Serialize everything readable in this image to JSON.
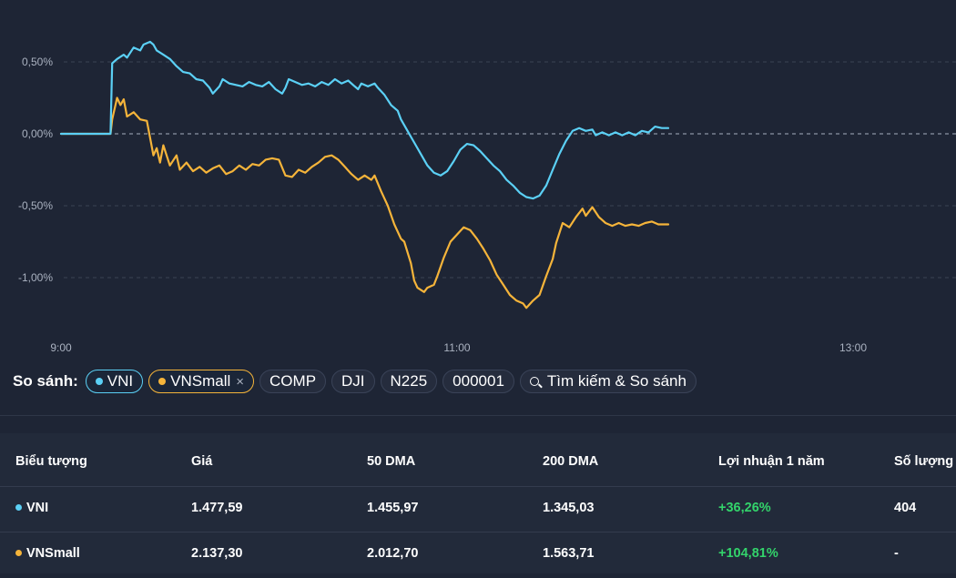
{
  "colors": {
    "vni": "#5bd0f5",
    "vnsmall": "#f5b43a",
    "positive": "#33d46b"
  },
  "chart_data": {
    "type": "line",
    "y_ticks": [
      "0,50%",
      "0,00%",
      "-0,50%",
      "-1,00%"
    ],
    "y_tick_values": [
      0.5,
      0,
      -0.5,
      -1.0
    ],
    "x_ticks": [
      "9:00",
      "11:00",
      "13:00"
    ],
    "x_tick_values": [
      0,
      120,
      240
    ],
    "xlim": [
      0,
      270
    ],
    "ylim": [
      -1.45,
      0.85
    ],
    "grid": "dashed-horizontal",
    "series": [
      {
        "name": "VNI",
        "color": "#5bd0f5",
        "points": [
          [
            0,
            0
          ],
          [
            15,
            0
          ],
          [
            15.5,
            0.49
          ],
          [
            17,
            0.52
          ],
          [
            19,
            0.55
          ],
          [
            20,
            0.53
          ],
          [
            22,
            0.6
          ],
          [
            24,
            0.58
          ],
          [
            25,
            0.62
          ],
          [
            27,
            0.64
          ],
          [
            28,
            0.62
          ],
          [
            29,
            0.58
          ],
          [
            31,
            0.55
          ],
          [
            33,
            0.52
          ],
          [
            35,
            0.47
          ],
          [
            37,
            0.43
          ],
          [
            39,
            0.42
          ],
          [
            41,
            0.38
          ],
          [
            43,
            0.37
          ],
          [
            45,
            0.32
          ],
          [
            46,
            0.28
          ],
          [
            48,
            0.33
          ],
          [
            49,
            0.38
          ],
          [
            51,
            0.35
          ],
          [
            53,
            0.34
          ],
          [
            55,
            0.33
          ],
          [
            57,
            0.36
          ],
          [
            59,
            0.34
          ],
          [
            61,
            0.33
          ],
          [
            63,
            0.36
          ],
          [
            65,
            0.31
          ],
          [
            67,
            0.28
          ],
          [
            68,
            0.32
          ],
          [
            69,
            0.38
          ],
          [
            71,
            0.36
          ],
          [
            73,
            0.34
          ],
          [
            75,
            0.35
          ],
          [
            77,
            0.33
          ],
          [
            79,
            0.36
          ],
          [
            81,
            0.34
          ],
          [
            83,
            0.38
          ],
          [
            85,
            0.35
          ],
          [
            87,
            0.37
          ],
          [
            89,
            0.33
          ],
          [
            90,
            0.31
          ],
          [
            91,
            0.35
          ],
          [
            93,
            0.33
          ],
          [
            95,
            0.35
          ],
          [
            96,
            0.32
          ],
          [
            98,
            0.27
          ],
          [
            100,
            0.2
          ],
          [
            102,
            0.16
          ],
          [
            103,
            0.1
          ],
          [
            105,
            0.02
          ],
          [
            107,
            -0.06
          ],
          [
            109,
            -0.14
          ],
          [
            111,
            -0.22
          ],
          [
            113,
            -0.27
          ],
          [
            115,
            -0.29
          ],
          [
            117,
            -0.26
          ],
          [
            119,
            -0.19
          ],
          [
            121,
            -0.11
          ],
          [
            123,
            -0.07
          ],
          [
            125,
            -0.08
          ],
          [
            127,
            -0.12
          ],
          [
            129,
            -0.17
          ],
          [
            131,
            -0.22
          ],
          [
            133,
            -0.26
          ],
          [
            135,
            -0.32
          ],
          [
            137,
            -0.36
          ],
          [
            139,
            -0.41
          ],
          [
            141,
            -0.44
          ],
          [
            143,
            -0.45
          ],
          [
            145,
            -0.43
          ],
          [
            147,
            -0.36
          ],
          [
            149,
            -0.25
          ],
          [
            151,
            -0.14
          ],
          [
            153,
            -0.05
          ],
          [
            155,
            0.02
          ],
          [
            157,
            0.04
          ],
          [
            159,
            0.02
          ],
          [
            161,
            0.03
          ],
          [
            162,
            -0.01
          ],
          [
            164,
            0.01
          ],
          [
            166,
            -0.01
          ],
          [
            168,
            0.01
          ],
          [
            170,
            -0.01
          ],
          [
            172,
            0.01
          ],
          [
            174,
            -0.01
          ],
          [
            176,
            0.02
          ],
          [
            178,
            0.01
          ],
          [
            180,
            0.05
          ],
          [
            182,
            0.04
          ],
          [
            184,
            0.04
          ]
        ]
      },
      {
        "name": "VNSmall",
        "color": "#f5b43a",
        "points": [
          [
            0,
            0
          ],
          [
            15,
            0
          ],
          [
            15.5,
            0.1
          ],
          [
            17,
            0.25
          ],
          [
            18,
            0.2
          ],
          [
            19,
            0.24
          ],
          [
            20,
            0.12
          ],
          [
            22,
            0.15
          ],
          [
            24,
            0.1
          ],
          [
            26,
            0.09
          ],
          [
            27,
            -0.03
          ],
          [
            28,
            -0.15
          ],
          [
            29,
            -0.1
          ],
          [
            30,
            -0.2
          ],
          [
            31,
            -0.08
          ],
          [
            33,
            -0.22
          ],
          [
            35,
            -0.15
          ],
          [
            36,
            -0.25
          ],
          [
            38,
            -0.2
          ],
          [
            40,
            -0.26
          ],
          [
            42,
            -0.23
          ],
          [
            44,
            -0.27
          ],
          [
            46,
            -0.24
          ],
          [
            48,
            -0.22
          ],
          [
            50,
            -0.28
          ],
          [
            52,
            -0.26
          ],
          [
            54,
            -0.22
          ],
          [
            56,
            -0.25
          ],
          [
            58,
            -0.21
          ],
          [
            60,
            -0.22
          ],
          [
            62,
            -0.18
          ],
          [
            64,
            -0.17
          ],
          [
            66,
            -0.18
          ],
          [
            68,
            -0.29
          ],
          [
            70,
            -0.3
          ],
          [
            72,
            -0.25
          ],
          [
            74,
            -0.27
          ],
          [
            76,
            -0.23
          ],
          [
            78,
            -0.2
          ],
          [
            80,
            -0.16
          ],
          [
            82,
            -0.15
          ],
          [
            84,
            -0.18
          ],
          [
            86,
            -0.23
          ],
          [
            88,
            -0.28
          ],
          [
            90,
            -0.32
          ],
          [
            92,
            -0.29
          ],
          [
            94,
            -0.32
          ],
          [
            95,
            -0.29
          ],
          [
            97,
            -0.4
          ],
          [
            99,
            -0.5
          ],
          [
            101,
            -0.63
          ],
          [
            103,
            -0.73
          ],
          [
            104,
            -0.75
          ],
          [
            106,
            -0.9
          ],
          [
            107,
            -1.02
          ],
          [
            108,
            -1.07
          ],
          [
            110,
            -1.1
          ],
          [
            111,
            -1.07
          ],
          [
            113,
            -1.05
          ],
          [
            114,
            -0.99
          ],
          [
            116,
            -0.86
          ],
          [
            118,
            -0.75
          ],
          [
            120,
            -0.7
          ],
          [
            122,
            -0.65
          ],
          [
            124,
            -0.67
          ],
          [
            126,
            -0.73
          ],
          [
            128,
            -0.8
          ],
          [
            130,
            -0.88
          ],
          [
            132,
            -0.98
          ],
          [
            134,
            -1.05
          ],
          [
            136,
            -1.12
          ],
          [
            138,
            -1.16
          ],
          [
            140,
            -1.18
          ],
          [
            141,
            -1.21
          ],
          [
            143,
            -1.16
          ],
          [
            145,
            -1.12
          ],
          [
            147,
            -0.99
          ],
          [
            149,
            -0.87
          ],
          [
            150,
            -0.76
          ],
          [
            152,
            -0.62
          ],
          [
            154,
            -0.65
          ],
          [
            156,
            -0.58
          ],
          [
            158,
            -0.52
          ],
          [
            159,
            -0.57
          ],
          [
            161,
            -0.51
          ],
          [
            163,
            -0.58
          ],
          [
            165,
            -0.62
          ],
          [
            167,
            -0.64
          ],
          [
            169,
            -0.62
          ],
          [
            171,
            -0.64
          ],
          [
            173,
            -0.63
          ],
          [
            175,
            -0.64
          ],
          [
            177,
            -0.62
          ],
          [
            179,
            -0.61
          ],
          [
            181,
            -0.63
          ],
          [
            184,
            -0.63
          ]
        ]
      }
    ]
  },
  "compare": {
    "label": "So sánh:",
    "vni": "VNI",
    "vnsmall": "VNSmall",
    "remove": "×",
    "comp": "COMP",
    "dji": "DJI",
    "n225": "N225",
    "sse": "000001",
    "search": "Tìm kiếm & So sánh"
  },
  "table": {
    "headers": [
      "Biểu tượng",
      "Giá",
      "50 DMA",
      "200 DMA",
      "Lợi nhuận 1 năm",
      "Số lượng"
    ],
    "rows": [
      {
        "symbol": "VNI",
        "price": "1.477,59",
        "dma50": "1.455,97",
        "dma200": "1.345,03",
        "return1y": "+36,26%",
        "volume": "404"
      },
      {
        "symbol": "VNSmall",
        "price": "2.137,30",
        "dma50": "2.012,70",
        "dma200": "1.563,71",
        "return1y": "+104,81%",
        "volume": "-"
      }
    ]
  }
}
